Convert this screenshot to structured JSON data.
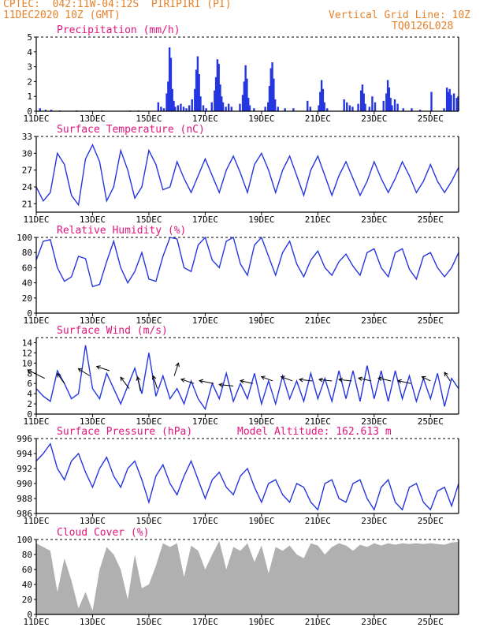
{
  "header": {
    "line1": "CPTEC:  042:11W-04:12S  PIRIPIRI (PI)",
    "line2": "11DEC2020 10Z (GMT)",
    "grid_label": "Vertical Grid Line: 10Z",
    "code": "TQ0126L028",
    "altitude_label": "Model Altitude: 162.613 m"
  },
  "colors": {
    "header": "#e6822a",
    "panel_title": "#e0157e",
    "line": "#2536e0",
    "precip_bar": "#2536e0",
    "cloud": "#b0b0b0",
    "wind_arrow": "#000000",
    "axis": "#000000"
  },
  "chart_data": [
    {
      "type": "bar",
      "title": "Precipitation (mm/h)",
      "ylim": [
        0,
        5
      ],
      "yticks": [
        "0",
        "1",
        "2",
        "3",
        "4",
        "5"
      ],
      "xticks": [
        "11DEC",
        "13DEC",
        "15DEC",
        "17DEC",
        "19DEC",
        "21DEC",
        "23DEC",
        "25DEC"
      ],
      "x_unit": "days since 11DEC 10Z",
      "x_range": [
        0,
        15
      ],
      "bars": [
        [
          0.1,
          0.2
        ],
        [
          0.3,
          0.1
        ],
        [
          0.5,
          0.1
        ],
        [
          0.8,
          0.05
        ],
        [
          1.4,
          0.05
        ],
        [
          2.3,
          0.05
        ],
        [
          3.3,
          0.05
        ],
        [
          3.6,
          0.05
        ],
        [
          4.3,
          0.6
        ],
        [
          4.4,
          0.3
        ],
        [
          4.5,
          0.2
        ],
        [
          4.6,
          1.2
        ],
        [
          4.65,
          2.0
        ],
        [
          4.7,
          4.3
        ],
        [
          4.75,
          3.6
        ],
        [
          4.8,
          1.5
        ],
        [
          4.85,
          0.7
        ],
        [
          4.9,
          0.3
        ],
        [
          5.0,
          0.4
        ],
        [
          5.1,
          0.5
        ],
        [
          5.2,
          0.3
        ],
        [
          5.3,
          0.2
        ],
        [
          5.4,
          0.4
        ],
        [
          5.5,
          0.8
        ],
        [
          5.6,
          1.5
        ],
        [
          5.65,
          2.8
        ],
        [
          5.7,
          3.7
        ],
        [
          5.75,
          2.5
        ],
        [
          5.8,
          1.0
        ],
        [
          5.9,
          0.4
        ],
        [
          6.0,
          0.2
        ],
        [
          6.2,
          0.6
        ],
        [
          6.3,
          1.4
        ],
        [
          6.35,
          2.3
        ],
        [
          6.4,
          3.5
        ],
        [
          6.45,
          3.2
        ],
        [
          6.5,
          1.8
        ],
        [
          6.55,
          1.0
        ],
        [
          6.6,
          0.6
        ],
        [
          6.7,
          0.3
        ],
        [
          6.8,
          0.5
        ],
        [
          6.9,
          0.3
        ],
        [
          7.2,
          0.5
        ],
        [
          7.3,
          1.1
        ],
        [
          7.35,
          2.0
        ],
        [
          7.4,
          3.1
        ],
        [
          7.45,
          2.2
        ],
        [
          7.5,
          0.9
        ],
        [
          7.55,
          0.4
        ],
        [
          7.7,
          0.2
        ],
        [
          8.1,
          0.3
        ],
        [
          8.2,
          0.6
        ],
        [
          8.25,
          1.7
        ],
        [
          8.3,
          2.9
        ],
        [
          8.35,
          3.3
        ],
        [
          8.4,
          2.2
        ],
        [
          8.45,
          0.8
        ],
        [
          8.55,
          0.3
        ],
        [
          8.8,
          0.2
        ],
        [
          9.1,
          0.2
        ],
        [
          9.6,
          0.7
        ],
        [
          9.7,
          0.3
        ],
        [
          10.0,
          0.4
        ],
        [
          10.05,
          1.3
        ],
        [
          10.1,
          2.1
        ],
        [
          10.15,
          1.5
        ],
        [
          10.2,
          0.6
        ],
        [
          10.3,
          0.2
        ],
        [
          10.9,
          0.8
        ],
        [
          11.0,
          0.6
        ],
        [
          11.1,
          0.4
        ],
        [
          11.2,
          0.3
        ],
        [
          11.4,
          0.5
        ],
        [
          11.5,
          1.4
        ],
        [
          11.55,
          1.8
        ],
        [
          11.6,
          1.2
        ],
        [
          11.65,
          0.5
        ],
        [
          11.8,
          0.3
        ],
        [
          11.9,
          1.0
        ],
        [
          12.0,
          0.6
        ],
        [
          12.3,
          0.7
        ],
        [
          12.4,
          1.2
        ],
        [
          12.45,
          2.1
        ],
        [
          12.5,
          1.6
        ],
        [
          12.55,
          0.9
        ],
        [
          12.6,
          0.4
        ],
        [
          12.7,
          0.8
        ],
        [
          12.8,
          0.5
        ],
        [
          13.0,
          0.2
        ],
        [
          13.3,
          0.2
        ],
        [
          13.6,
          0.1
        ],
        [
          14.0,
          1.3
        ],
        [
          14.45,
          0.2
        ],
        [
          14.55,
          1.6
        ],
        [
          14.6,
          1.3
        ],
        [
          14.65,
          1.5
        ],
        [
          14.7,
          1.1
        ],
        [
          14.8,
          1.2
        ],
        [
          14.9,
          0.9
        ],
        [
          14.95,
          1.0
        ]
      ]
    },
    {
      "type": "line",
      "title": "Surface Temperature (nC)",
      "ylim": [
        19.5,
        33
      ],
      "yticks": [
        "21",
        "24",
        "27",
        "30",
        "33"
      ],
      "xticks": [
        "11DEC",
        "13DEC",
        "15DEC",
        "17DEC",
        "19DEC",
        "21DEC",
        "23DEC",
        "25DEC"
      ],
      "x": [
        0,
        0.25,
        0.5,
        0.75,
        1.0,
        1.25,
        1.5,
        1.75,
        2.0,
        2.25,
        2.5,
        2.75,
        3.0,
        3.25,
        3.5,
        3.75,
        4.0,
        4.25,
        4.5,
        4.75,
        5.0,
        5.25,
        5.5,
        5.75,
        6.0,
        6.25,
        6.5,
        6.75,
        7.0,
        7.25,
        7.5,
        7.75,
        8.0,
        8.25,
        8.5,
        8.75,
        9.0,
        9.25,
        9.5,
        9.75,
        10.0,
        10.25,
        10.5,
        10.75,
        11.0,
        11.25,
        11.5,
        11.75,
        12.0,
        12.25,
        12.5,
        12.75,
        13.0,
        13.25,
        13.5,
        13.75,
        14.0,
        14.25,
        14.5,
        14.75,
        15.0
      ],
      "values": [
        24,
        21.5,
        23,
        30,
        28,
        22.5,
        20.8,
        29,
        31.5,
        28.5,
        21.5,
        24,
        30.5,
        27,
        22,
        24,
        30.5,
        28,
        23.5,
        24,
        28.5,
        25.5,
        23,
        26,
        29,
        26,
        23,
        27,
        29.5,
        26.5,
        23,
        28,
        30,
        27,
        23,
        27,
        29.5,
        26,
        22.5,
        27,
        29.5,
        26,
        22.5,
        26,
        28.5,
        25.5,
        22.5,
        25,
        28.5,
        25.5,
        23,
        25.5,
        28.5,
        26,
        23,
        25,
        28,
        25,
        23,
        25,
        27.5
      ]
    },
    {
      "type": "line",
      "title": "Relative Humidity (%)",
      "ylim": [
        0,
        100
      ],
      "yticks": [
        "0",
        "20",
        "40",
        "60",
        "80",
        "100"
      ],
      "xticks": [
        "11DEC",
        "13DEC",
        "15DEC",
        "17DEC",
        "19DEC",
        "21DEC",
        "23DEC",
        "25DEC"
      ],
      "x": [
        0,
        0.25,
        0.5,
        0.75,
        1.0,
        1.25,
        1.5,
        1.75,
        2.0,
        2.25,
        2.5,
        2.75,
        3.0,
        3.25,
        3.5,
        3.75,
        4.0,
        4.25,
        4.5,
        4.75,
        5.0,
        5.25,
        5.5,
        5.75,
        6.0,
        6.25,
        6.5,
        6.75,
        7.0,
        7.25,
        7.5,
        7.75,
        8.0,
        8.25,
        8.5,
        8.75,
        9.0,
        9.25,
        9.5,
        9.75,
        10.0,
        10.25,
        10.5,
        10.75,
        11.0,
        11.25,
        11.5,
        11.75,
        12.0,
        12.25,
        12.5,
        12.75,
        13.0,
        13.25,
        13.5,
        13.75,
        14.0,
        14.25,
        14.5,
        14.75,
        15.0
      ],
      "values": [
        70,
        95,
        97,
        60,
        42,
        48,
        75,
        72,
        35,
        38,
        68,
        95,
        60,
        40,
        55,
        80,
        45,
        42,
        75,
        100,
        98,
        60,
        55,
        90,
        100,
        70,
        60,
        95,
        100,
        65,
        50,
        90,
        100,
        75,
        50,
        80,
        95,
        65,
        48,
        70,
        82,
        60,
        50,
        68,
        78,
        62,
        50,
        80,
        85,
        60,
        48,
        80,
        85,
        58,
        45,
        75,
        80,
        60,
        48,
        60,
        80
      ]
    },
    {
      "type": "line",
      "title": "Surface Wind (m/s)",
      "ylim": [
        0,
        15
      ],
      "yticks": [
        "0",
        "2",
        "4",
        "6",
        "8",
        "10",
        "12",
        "14"
      ],
      "xticks": [
        "11DEC",
        "13DEC",
        "15DEC",
        "17DEC",
        "19DEC",
        "21DEC",
        "23DEC",
        "25DEC"
      ],
      "x": [
        0,
        0.25,
        0.5,
        0.75,
        1.0,
        1.25,
        1.5,
        1.75,
        2.0,
        2.25,
        2.5,
        2.75,
        3.0,
        3.25,
        3.5,
        3.75,
        4.0,
        4.25,
        4.5,
        4.75,
        5.0,
        5.25,
        5.5,
        5.75,
        6.0,
        6.25,
        6.5,
        6.75,
        7.0,
        7.25,
        7.5,
        7.75,
        8.0,
        8.25,
        8.5,
        8.75,
        9.0,
        9.25,
        9.5,
        9.75,
        10.0,
        10.25,
        10.5,
        10.75,
        11.0,
        11.25,
        11.5,
        11.75,
        12.0,
        12.25,
        12.5,
        12.75,
        13.0,
        13.25,
        13.5,
        13.75,
        14.0,
        14.25,
        14.5,
        14.75,
        15.0
      ],
      "values": [
        5,
        3.5,
        2.5,
        8.5,
        6,
        3,
        4,
        13.5,
        5,
        3,
        8,
        5,
        2,
        5.5,
        9,
        4,
        12,
        3.5,
        7.5,
        3,
        5,
        2,
        6.5,
        3,
        1,
        6,
        3,
        8,
        2.5,
        6,
        3,
        8,
        2,
        6.5,
        2,
        7.5,
        3,
        6.5,
        2.5,
        8,
        3,
        7,
        2.5,
        8.5,
        3,
        8.5,
        2.5,
        9.5,
        3,
        8.5,
        2.5,
        8.5,
        3,
        7.5,
        2.5,
        7,
        3,
        8,
        1.5,
        7,
        5
      ],
      "arrows": [
        [
          0.3,
          7,
          -1.2,
          0.6
        ],
        [
          1.0,
          6,
          -0.5,
          0.7
        ],
        [
          1.9,
          7.5,
          -0.8,
          0.5
        ],
        [
          2.6,
          8.5,
          -0.9,
          0.3
        ],
        [
          3.3,
          5,
          -0.6,
          0.8
        ],
        [
          3.7,
          4.5,
          -0.2,
          1.0
        ],
        [
          4.3,
          5,
          -0.3,
          0.9
        ],
        [
          4.9,
          7.5,
          0.3,
          0.9
        ],
        [
          5.6,
          6,
          -0.9,
          0.3
        ],
        [
          6.3,
          6,
          -1.0,
          0.2
        ],
        [
          7.0,
          5.5,
          -1.0,
          0.1
        ],
        [
          7.7,
          6,
          -0.9,
          0.2
        ],
        [
          8.4,
          6.5,
          -0.8,
          0.3
        ],
        [
          9.1,
          6.5,
          -0.8,
          0.3
        ],
        [
          9.8,
          6.5,
          -0.9,
          0.1
        ],
        [
          10.5,
          6.5,
          -0.9,
          0.1
        ],
        [
          11.2,
          6.5,
          -0.9,
          0.1
        ],
        [
          11.9,
          6.5,
          -0.9,
          0.2
        ],
        [
          12.6,
          6.5,
          -0.9,
          0.2
        ],
        [
          13.3,
          6,
          -0.9,
          0.2
        ],
        [
          14.0,
          6.5,
          -0.6,
          0.3
        ],
        [
          14.7,
          6.5,
          -0.4,
          0.6
        ]
      ]
    },
    {
      "type": "line",
      "title": "Surface Pressure (hPa)",
      "ylim": [
        986,
        996
      ],
      "yticks": [
        "986",
        "988",
        "990",
        "992",
        "994",
        "996"
      ],
      "xticks": [
        "11DEC",
        "13DEC",
        "15DEC",
        "17DEC",
        "19DEC",
        "21DEC",
        "23DEC",
        "25DEC"
      ],
      "x": [
        0,
        0.25,
        0.5,
        0.75,
        1.0,
        1.25,
        1.5,
        1.75,
        2.0,
        2.25,
        2.5,
        2.75,
        3.0,
        3.25,
        3.5,
        3.75,
        4.0,
        4.25,
        4.5,
        4.75,
        5.0,
        5.25,
        5.5,
        5.75,
        6.0,
        6.25,
        6.5,
        6.75,
        7.0,
        7.25,
        7.5,
        7.75,
        8.0,
        8.25,
        8.5,
        8.75,
        9.0,
        9.25,
        9.5,
        9.75,
        10.0,
        10.25,
        10.5,
        10.75,
        11.0,
        11.25,
        11.5,
        11.75,
        12.0,
        12.25,
        12.5,
        12.75,
        13.0,
        13.25,
        13.5,
        13.75,
        14.0,
        14.25,
        14.5,
        14.75,
        15.0
      ],
      "values": [
        993,
        994,
        995.3,
        992,
        990.5,
        993,
        994,
        991.5,
        989.5,
        992,
        993.5,
        991,
        989.5,
        992,
        993,
        990.5,
        987.5,
        991,
        992.5,
        990,
        988.5,
        991,
        993,
        990.5,
        988,
        990.5,
        991.5,
        989.5,
        988.5,
        991,
        992,
        989.5,
        987.5,
        990,
        990.5,
        988.5,
        987.5,
        990,
        989.5,
        987.5,
        986.5,
        990,
        990.5,
        988,
        987.5,
        990,
        990.5,
        988,
        986.5,
        989.5,
        990.5,
        987.5,
        986.5,
        989.5,
        990,
        987.5,
        986.5,
        989,
        989.5,
        987,
        990
      ]
    },
    {
      "type": "area",
      "title": "Cloud Cover (%)",
      "ylim": [
        0,
        100
      ],
      "yticks": [
        "0",
        "20",
        "40",
        "60",
        "80",
        "100"
      ],
      "xticks": [
        "11DEC",
        "13DEC",
        "15DEC",
        "17DEC",
        "19DEC",
        "21DEC",
        "23DEC",
        "25DEC"
      ],
      "x": [
        0,
        0.25,
        0.5,
        0.75,
        1.0,
        1.25,
        1.5,
        1.75,
        2.0,
        2.25,
        2.5,
        2.75,
        3.0,
        3.25,
        3.5,
        3.75,
        4.0,
        4.25,
        4.5,
        4.75,
        5.0,
        5.25,
        5.5,
        5.75,
        6.0,
        6.25,
        6.5,
        6.75,
        7.0,
        7.25,
        7.5,
        7.75,
        8.0,
        8.25,
        8.5,
        8.75,
        9.0,
        9.25,
        9.5,
        9.75,
        10.0,
        10.25,
        10.5,
        10.75,
        11.0,
        11.25,
        11.5,
        11.75,
        12.0,
        12.25,
        12.5,
        12.75,
        13.0,
        13.25,
        13.5,
        13.75,
        14.0,
        14.25,
        14.5,
        14.75,
        15.0
      ],
      "values": [
        95,
        90,
        85,
        30,
        75,
        45,
        8,
        30,
        5,
        60,
        90,
        80,
        60,
        20,
        80,
        35,
        40,
        65,
        95,
        90,
        95,
        50,
        92,
        85,
        60,
        80,
        98,
        60,
        90,
        85,
        95,
        70,
        92,
        55,
        90,
        85,
        92,
        80,
        75,
        95,
        92,
        80,
        90,
        95,
        92,
        85,
        93,
        90,
        95,
        92,
        95,
        93,
        95,
        94,
        95,
        94,
        95,
        94,
        93,
        96,
        97
      ]
    }
  ]
}
